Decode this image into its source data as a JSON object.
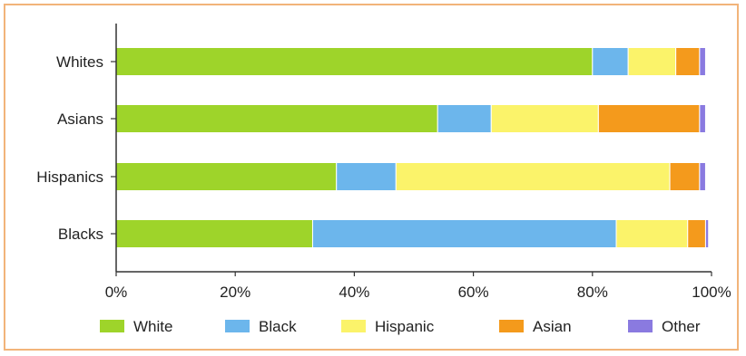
{
  "chart_data": {
    "type": "bar",
    "orientation": "horizontal",
    "stacked": true,
    "categories": [
      "Whites",
      "Asians",
      "Hispanics",
      "Blacks"
    ],
    "series": [
      {
        "name": "White",
        "color": "#9ed42a",
        "values": [
          80,
          54,
          37,
          33
        ]
      },
      {
        "name": "Black",
        "color": "#6cb6ec",
        "values": [
          6,
          9,
          10,
          51
        ]
      },
      {
        "name": "Hispanic",
        "color": "#fbf36a",
        "values": [
          8,
          18,
          46,
          12
        ]
      },
      {
        "name": "Asian",
        "color": "#f49a1c",
        "values": [
          4,
          17,
          5,
          3
        ]
      },
      {
        "name": "Other",
        "color": "#8a7ae0",
        "values": [
          1,
          1,
          1,
          0.5
        ]
      }
    ],
    "xlim": [
      0,
      100
    ],
    "x_ticks": [
      "0%",
      "20%",
      "40%",
      "60%",
      "80%",
      "100%"
    ],
    "title": "",
    "xlabel": "",
    "ylabel": "",
    "grid": false,
    "legend_placement": "bottom"
  }
}
